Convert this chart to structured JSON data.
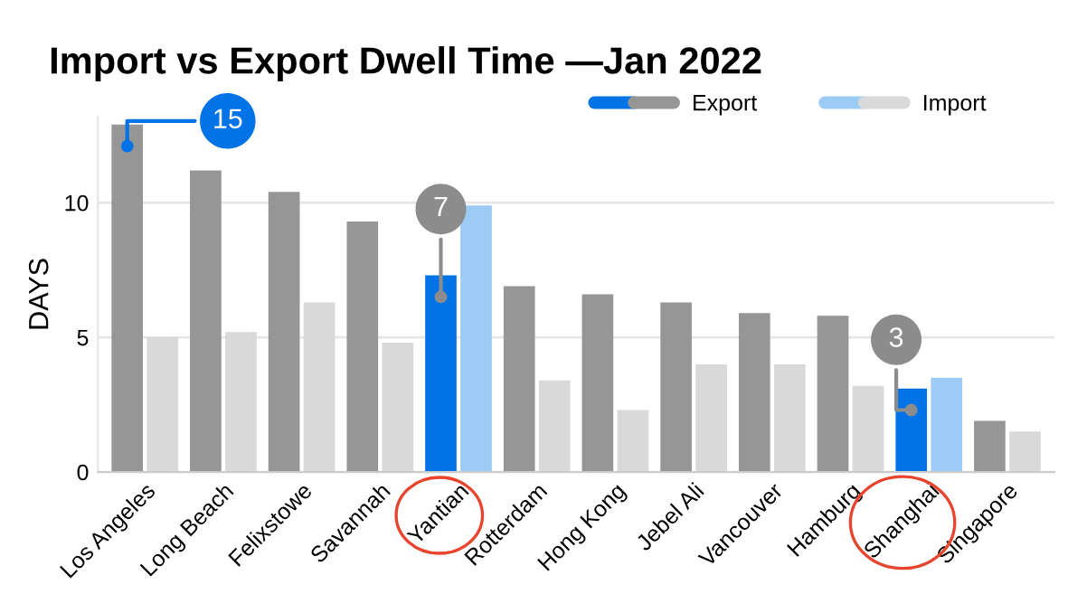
{
  "chart_data": {
    "type": "bar",
    "title": "Import vs Export Dwell Time —Jan 2022",
    "ylabel": "DAYS",
    "categories": [
      "Los Angeles",
      "Long Beach",
      "Felixstowe",
      "Savannah",
      "Yantian",
      "Rotterdam",
      "Hong Kong",
      "Jebel Ali",
      "Vancouver",
      "Hamburg",
      "Shanghai",
      "Singapore"
    ],
    "series": [
      {
        "name": "Export",
        "colors": [
          "#969696",
          "#969696",
          "#969696",
          "#969696",
          "#0073e6",
          "#969696",
          "#969696",
          "#969696",
          "#969696",
          "#969696",
          "#0073e6",
          "#969696"
        ],
        "values": [
          12.9,
          11.2,
          10.4,
          9.3,
          7.3,
          6.9,
          6.6,
          6.3,
          5.9,
          5.8,
          3.1,
          1.9
        ]
      },
      {
        "name": "Import",
        "colors": [
          "#d9d9d9",
          "#d9d9d9",
          "#d9d9d9",
          "#d9d9d9",
          "#9ccbf5",
          "#d9d9d9",
          "#d9d9d9",
          "#d9d9d9",
          "#d9d9d9",
          "#d9d9d9",
          "#9ccbf5",
          "#d9d9d9"
        ],
        "values": [
          5.0,
          5.2,
          6.3,
          4.8,
          9.9,
          3.4,
          2.3,
          4.0,
          4.0,
          3.2,
          3.5,
          1.5
        ]
      }
    ],
    "ylim": [
      0,
      13.2
    ],
    "yticks": [
      0,
      5,
      10
    ],
    "grid": "y",
    "legend": "top right",
    "annotations": [
      {
        "text": "15",
        "x": "Los Angeles",
        "y": 12.1
      },
      {
        "text": "7",
        "x": "Yantian",
        "y": 6.5
      },
      {
        "text": "3",
        "x": "Shanghai",
        "y": 2.3
      }
    ]
  }
}
